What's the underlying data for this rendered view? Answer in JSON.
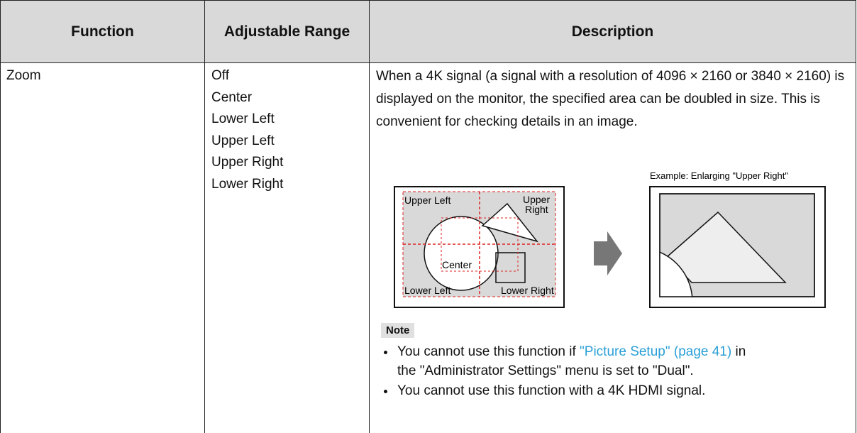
{
  "table": {
    "headers": [
      "Function",
      "Adjustable Range",
      "Description"
    ],
    "rows": [
      {
        "function": "Zoom",
        "range": [
          "Off",
          "Center",
          "Lower Left",
          "Upper Left",
          "Upper Right",
          "Lower Right"
        ],
        "description": "When a 4K signal (a signal with a resolution of 4096 × 2160 or 3840 × 2160) is displayed on the monitor, the specified area can be doubled in size. This is convenient for checking details in an image."
      }
    ]
  },
  "figure": {
    "caption": "Example: Enlarging \"Upper Right\"",
    "labels": {
      "upper_left": "Upper Left",
      "upper_right_1": "Upper",
      "upper_right_2": "Right",
      "center": "Center",
      "lower_left": "Lower Left",
      "lower_right": "Lower Right"
    }
  },
  "note": {
    "label": "Note",
    "items": [
      {
        "before": "You cannot use this function if ",
        "link": "\"Picture Setup\" (page 41)",
        "after": " in the \"Administrator Settings\" menu is set to \"Dual\"."
      },
      {
        "text": "You cannot use this function with a 4K HDMI signal."
      }
    ]
  }
}
